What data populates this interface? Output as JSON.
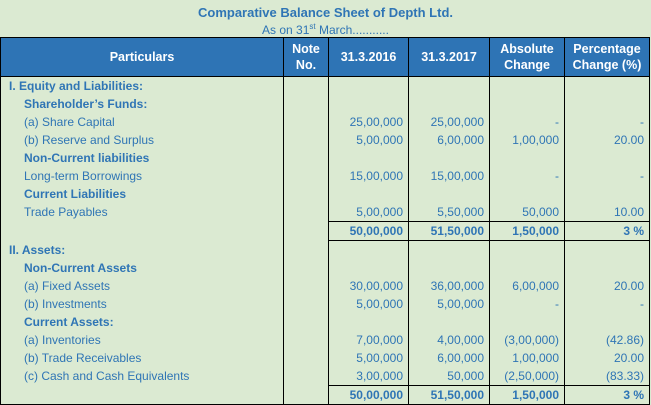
{
  "title": "Comparative Balance Sheet of Depth Ltd.",
  "subtitle": {
    "pre": "As on 31",
    "sup": "st",
    "post": " March..........."
  },
  "headers": [
    "Particulars",
    "Note No.",
    "31.3.2016",
    "31.3.2017",
    "Absolute Change",
    "Percentage Change (%)"
  ],
  "header_lines": {
    "note": [
      "Note",
      "No."
    ],
    "abs": [
      "Absolute",
      "Change"
    ],
    "pct": [
      "Percentage",
      "Change (%)"
    ]
  },
  "rows": [
    {
      "label": "I. Equity and Liabilities:",
      "style": "b i1",
      "y2016": "",
      "y2017": "",
      "abs": "",
      "pct": ""
    },
    {
      "label": "Shareholder’s Funds:",
      "style": "b i2",
      "y2016": "",
      "y2017": "",
      "abs": "",
      "pct": ""
    },
    {
      "label": "(a) Share Capital",
      "style": "i2",
      "y2016": "25,00,000",
      "y2017": "25,00,000",
      "abs": "-",
      "pct": "-"
    },
    {
      "label": "(b) Reserve and Surplus",
      "style": "i2",
      "y2016": "5,00,000",
      "y2017": "6,00,000",
      "abs": "1,00,000",
      "pct": "20.00"
    },
    {
      "label": "Non-Current liabilities",
      "style": "b i2",
      "y2016": "",
      "y2017": "",
      "abs": "",
      "pct": ""
    },
    {
      "label": "Long-term Borrowings",
      "style": "i2",
      "y2016": "15,00,000",
      "y2017": "15,00,000",
      "abs": "-",
      "pct": "-"
    },
    {
      "label": "Current Liabilities",
      "style": "b i2",
      "y2016": "",
      "y2017": "",
      "abs": "",
      "pct": ""
    },
    {
      "label": "Trade Payables",
      "style": "i2",
      "y2016": "5,00,000",
      "y2017": "5,50,000",
      "abs": "50,000",
      "pct": "10.00"
    },
    {
      "label": "",
      "style": "total",
      "y2016": "50,00,000",
      "y2017": "51,50,000",
      "abs": "1,50,000",
      "pct": "3 %"
    },
    {
      "label": "II. Assets:",
      "style": "b i1",
      "y2016": "",
      "y2017": "",
      "abs": "",
      "pct": ""
    },
    {
      "label": "Non-Current Assets",
      "style": "b i2",
      "y2016": "",
      "y2017": "",
      "abs": "",
      "pct": ""
    },
    {
      "label": "(a) Fixed Assets",
      "style": "i2",
      "y2016": "30,00,000",
      "y2017": "36,00,000",
      "abs": "6,00,000",
      "pct": "20.00"
    },
    {
      "label": "(b) Investments",
      "style": "i2",
      "y2016": "5,00,000",
      "y2017": "5,00,000",
      "abs": "-",
      "pct": "-"
    },
    {
      "label": "Current Assets:",
      "style": "b i2",
      "y2016": "",
      "y2017": "",
      "abs": "",
      "pct": ""
    },
    {
      "label": "(a) Inventories",
      "style": "i2",
      "y2016": "7,00,000",
      "y2017": "4,00,000",
      "abs": "(3,00,000)",
      "pct": "(42.86)"
    },
    {
      "label": "(b) Trade Receivables",
      "style": "i2",
      "y2016": "5,00,000",
      "y2017": "6,00,000",
      "abs": "1,00,000",
      "pct": "20.00"
    },
    {
      "label": "(c) Cash and Cash Equivalents",
      "style": "i2",
      "y2016": "3,00,000",
      "y2017": "50,000",
      "abs": "(2,50,000)",
      "pct": "(83.33)"
    },
    {
      "label": "",
      "style": "total last",
      "y2016": "50,00,000",
      "y2017": "51,50,000",
      "abs": "1,50,000",
      "pct": "3 %"
    }
  ]
}
